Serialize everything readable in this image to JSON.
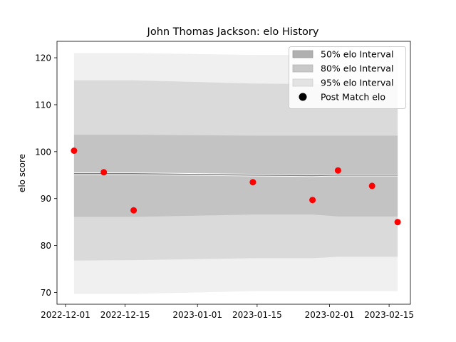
{
  "chart_data": {
    "type": "line",
    "title": "John Thomas Jackson: elo History",
    "xlabel": "",
    "ylabel": "elo score",
    "x_axis_type": "date",
    "xlim": [
      "2022-11-29",
      "2023-02-20"
    ],
    "ylim": [
      67.5,
      123.5
    ],
    "x_ticks": [
      "2022-12-01",
      "2022-12-15",
      "2023-01-01",
      "2023-01-15",
      "2023-02-01",
      "2023-02-15"
    ],
    "y_ticks": [
      70,
      80,
      90,
      100,
      110,
      120
    ],
    "grid": false,
    "legend_position": "top-right",
    "band_x": [
      "2022-12-03",
      "2022-12-17",
      "2023-01-14",
      "2023-01-28",
      "2023-02-03",
      "2023-02-17"
    ],
    "mean_line": {
      "x": [
        "2022-12-03",
        "2022-12-17",
        "2023-01-14",
        "2023-01-28",
        "2023-02-03",
        "2023-02-17"
      ],
      "y": [
        95.3,
        95.3,
        95.0,
        94.9,
        95.0,
        95.0
      ],
      "color": "#808080"
    },
    "intervals": [
      {
        "name": "50% elo Interval",
        "upper": [
          103.6,
          103.6,
          103.4,
          103.4,
          103.4,
          103.4
        ],
        "lower": [
          86.1,
          86.1,
          86.6,
          86.6,
          86.2,
          86.2
        ],
        "color": "#b0b0b0"
      },
      {
        "name": "80% elo Interval",
        "upper": [
          115.2,
          115.2,
          114.5,
          114.4,
          114.3,
          114.3
        ],
        "lower": [
          76.8,
          76.9,
          77.3,
          77.3,
          77.6,
          77.6
        ],
        "color": "#c8c8c8"
      },
      {
        "name": "95% elo Interval",
        "upper": [
          121.0,
          121.0,
          120.6,
          120.6,
          120.5,
          120.4
        ],
        "lower": [
          69.7,
          69.7,
          70.3,
          70.3,
          70.3,
          70.3
        ],
        "color": "#e3e3e3"
      }
    ],
    "series": [
      {
        "name": "Post Match elo",
        "type": "scatter",
        "color": "#ff0000",
        "x": [
          "2022-12-03",
          "2022-12-10",
          "2022-12-17",
          "2023-01-14",
          "2023-01-28",
          "2023-02-03",
          "2023-02-11",
          "2023-02-17"
        ],
        "y": [
          100.2,
          95.6,
          87.5,
          93.5,
          89.7,
          96.0,
          92.7,
          85.0
        ]
      }
    ],
    "legend": [
      {
        "label": "50% elo Interval"
      },
      {
        "label": "80% elo Interval"
      },
      {
        "label": "95% elo Interval"
      },
      {
        "label": "Post Match elo"
      }
    ]
  }
}
